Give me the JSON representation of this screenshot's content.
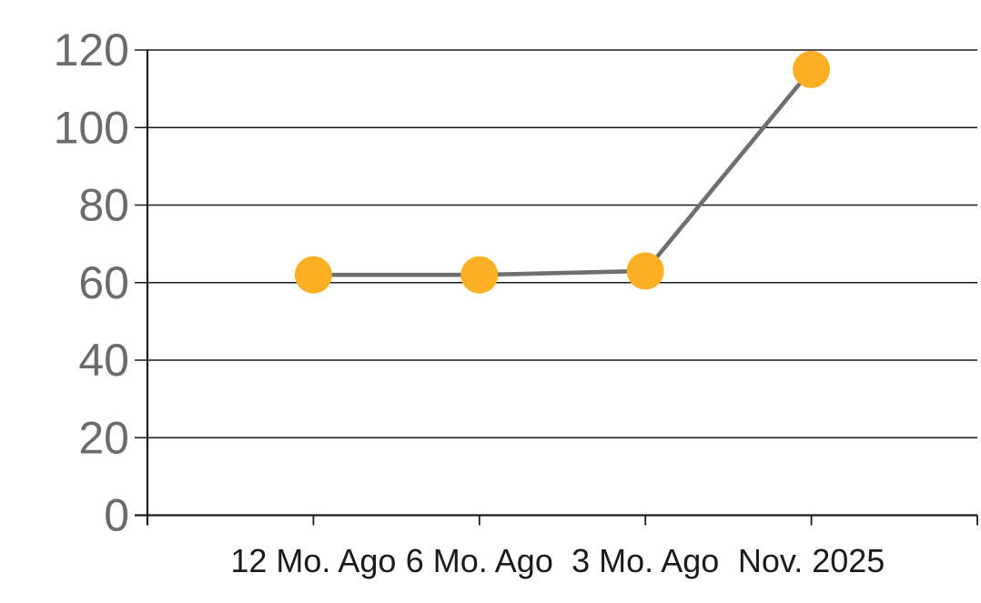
{
  "chart_data": {
    "type": "line",
    "title": "",
    "xlabel": "",
    "ylabel": "",
    "categories": [
      "12 Mo. Ago",
      "6 Mo. Ago",
      "3 Mo. Ago",
      "Nov. 2025"
    ],
    "values": [
      62,
      62,
      63,
      115
    ],
    "ylim": [
      0,
      120
    ],
    "y_ticks": [
      0,
      20,
      40,
      60,
      80,
      100,
      120
    ],
    "grid": true,
    "legend": false,
    "marker_shape": "circle",
    "colors": {
      "marker": "#FBB023",
      "line": "#6F6F6F",
      "grid": "#1A1A1A",
      "axis": "#1A1A1A",
      "y_tick_label": "#6B6B6B",
      "x_tick_label": "#1B1B1B",
      "background": "#FFFFFF"
    }
  }
}
